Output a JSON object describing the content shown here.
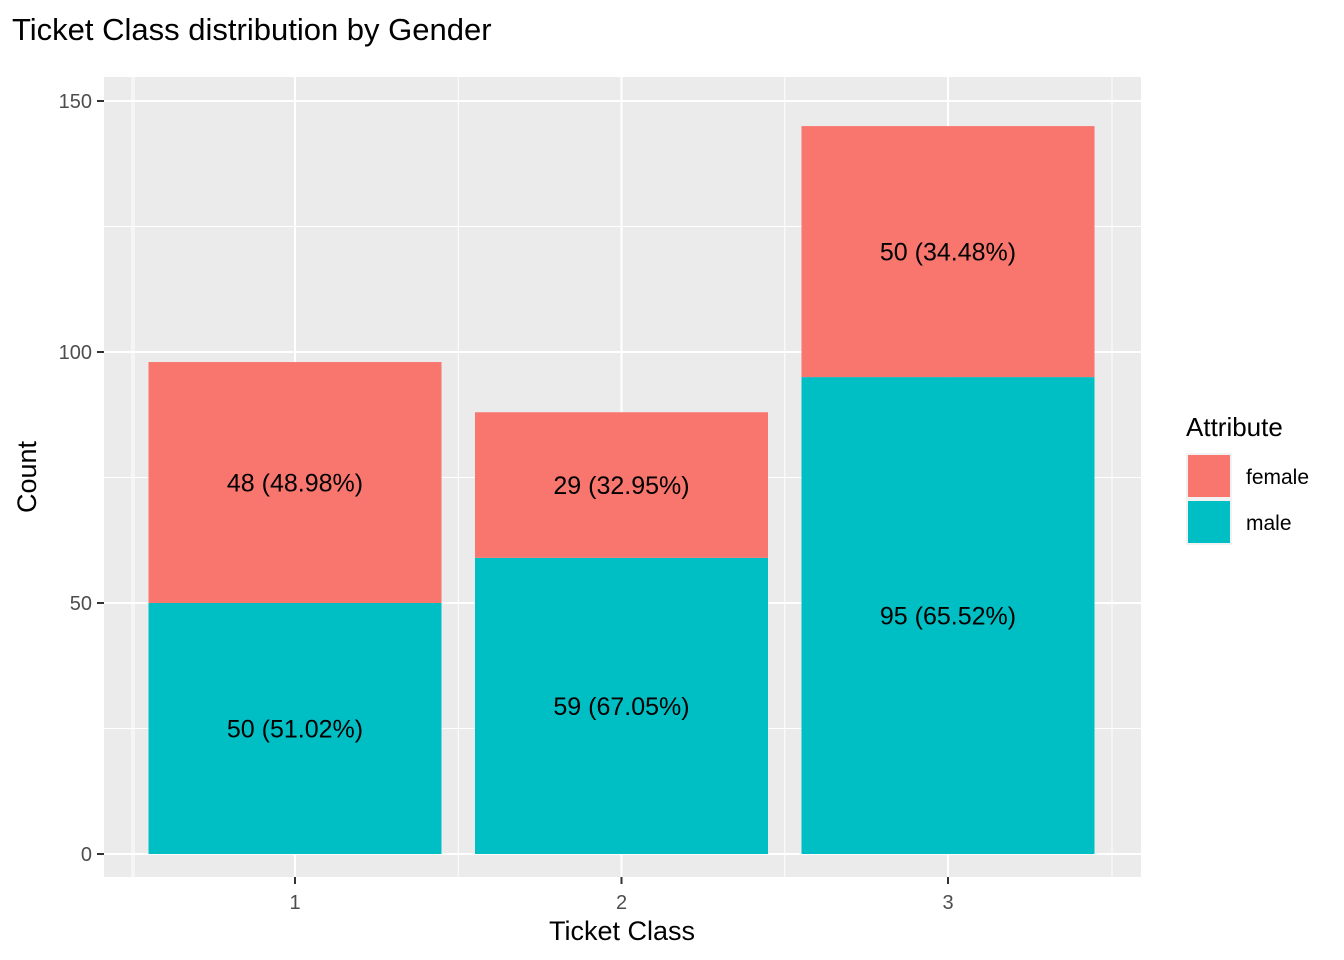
{
  "chart_data": {
    "type": "bar",
    "stacked": true,
    "title": "Ticket Class distribution by Gender",
    "xlabel": "Ticket Class",
    "ylabel": "Count",
    "categories": [
      "1",
      "2",
      "3"
    ],
    "ylim": [
      0,
      150
    ],
    "yticks": [
      0,
      50,
      100,
      150
    ],
    "grid": true,
    "legend_position": "right",
    "legend": {
      "title": "Attribute",
      "entries": [
        {
          "label": "female",
          "color": "#F8766D"
        },
        {
          "label": "male",
          "color": "#00BFC4"
        }
      ]
    },
    "series": [
      {
        "name": "male",
        "color": "#00BFC4",
        "values": [
          50,
          59,
          95
        ],
        "labels": [
          "50 (51.02%)",
          "59 (67.05%)",
          "95 (65.52%)"
        ]
      },
      {
        "name": "female",
        "color": "#F8766D",
        "values": [
          48,
          29,
          50
        ],
        "labels": [
          "48 (48.98%)",
          "29 (32.95%)",
          "50 (34.48%)"
        ]
      }
    ]
  }
}
